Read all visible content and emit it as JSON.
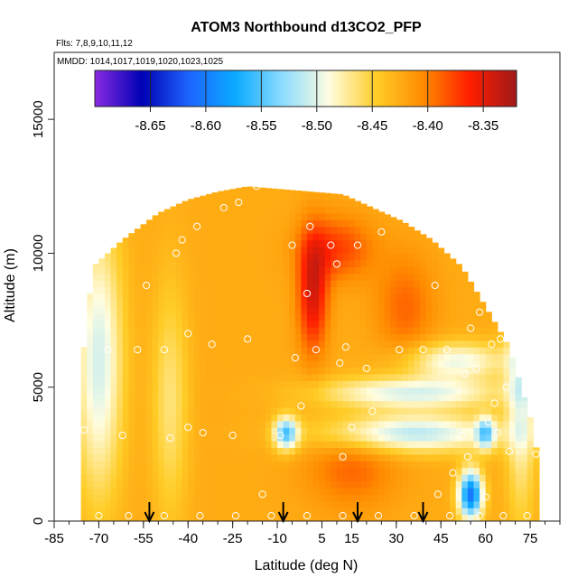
{
  "chart_data": {
    "type": "heatmap",
    "title": "ATOM3 Northbound d13CO2_PFP",
    "subtitle_flights": "Flts: 7,8,9,10,11,12",
    "subtitle_mmdd": "MMDD: 1014,1017,1019,1020,1023,1025",
    "xlabel": "Latitude (deg N)",
    "ylabel": "Altitude (m)",
    "xlim": [
      -85,
      85
    ],
    "ylim": [
      0,
      17500
    ],
    "xticks": [
      -85,
      -70,
      -55,
      -40,
      -25,
      -10,
      5,
      15,
      30,
      45,
      60,
      75
    ],
    "xminor_step": 5,
    "yticks": [
      0,
      5000,
      10000,
      15000
    ],
    "colorbar": {
      "min": -8.7,
      "max": -8.32,
      "ticks": [
        -8.65,
        -8.6,
        -8.55,
        -8.5,
        -8.45,
        -8.4,
        -8.35
      ],
      "tick_labels": [
        "-8.65",
        "-8.60",
        "-8.55",
        "-8.50",
        "-8.45",
        "-8.40",
        "-8.35"
      ],
      "colors": [
        "#8a2be2",
        "#0000b4",
        "#1e64ff",
        "#0aaaff",
        "#8cdcff",
        "#fffde0",
        "#ffcd28",
        "#ff8c00",
        "#ff1e00",
        "#a01919"
      ]
    },
    "field": {
      "lat_min": -76,
      "lat_max": 78,
      "lat_step": 2,
      "alt_step": 250,
      "ceiling": [
        {
          "lat": -76,
          "alt": 5500
        },
        {
          "lat": -72,
          "alt": 9500
        },
        {
          "lat": -62,
          "alt": 10500
        },
        {
          "lat": -50,
          "alt": 11500
        },
        {
          "lat": -40,
          "alt": 12000
        },
        {
          "lat": -30,
          "alt": 12300
        },
        {
          "lat": -20,
          "alt": 12500
        },
        {
          "lat": 12,
          "alt": 12200
        },
        {
          "lat": 22,
          "alt": 11700
        },
        {
          "lat": 32,
          "alt": 11200
        },
        {
          "lat": 42,
          "alt": 10500
        },
        {
          "lat": 52,
          "alt": 9500
        },
        {
          "lat": 60,
          "alt": 8000
        },
        {
          "lat": 68,
          "alt": 6500
        },
        {
          "lat": 76,
          "alt": 3500
        },
        {
          "lat": 78,
          "alt": 2000
        }
      ],
      "base": -8.425,
      "features": [
        {
          "lat": 2,
          "alt": 8500,
          "sx": 5,
          "sy": 2200,
          "amp": 0.08
        },
        {
          "lat": 10,
          "alt": 10200,
          "sx": 12,
          "sy": 1200,
          "amp": 0.05
        },
        {
          "lat": 33,
          "alt": 8000,
          "sx": 10,
          "sy": 2000,
          "amp": 0.035
        },
        {
          "lat": 50,
          "alt": 6000,
          "sx": 18,
          "sy": 700,
          "amp": -0.07
        },
        {
          "lat": 35,
          "alt": 4800,
          "sx": 30,
          "sy": 600,
          "amp": -0.08
        },
        {
          "lat": 35,
          "alt": 3300,
          "sx": 30,
          "sy": 700,
          "amp": -0.09
        },
        {
          "lat": -7,
          "alt": 3300,
          "sx": 4,
          "sy": 600,
          "amp": -0.12
        },
        {
          "lat": 60,
          "alt": 3300,
          "sx": 3,
          "sy": 600,
          "amp": -0.09
        },
        {
          "lat": 55,
          "alt": 1000,
          "sx": 4,
          "sy": 900,
          "amp": -0.18
        },
        {
          "lat": -70,
          "alt": 6000,
          "sx": 8,
          "sy": 5000,
          "amp": -0.08
        },
        {
          "lat": -46,
          "alt": 4500,
          "sx": 6,
          "sy": 4500,
          "amp": -0.04
        },
        {
          "lat": 15,
          "alt": 2000,
          "sx": 15,
          "sy": 1500,
          "amp": 0.035
        },
        {
          "lat": 72,
          "alt": 5500,
          "sx": 5,
          "sy": 5000,
          "amp": -0.07
        }
      ]
    },
    "observations": [
      {
        "lat": -75,
        "alt": 3400
      },
      {
        "lat": -73,
        "alt": 9700
      },
      {
        "lat": -67,
        "alt": 6400
      },
      {
        "lat": -62,
        "alt": 3200
      },
      {
        "lat": -57,
        "alt": 6400
      },
      {
        "lat": -54,
        "alt": 8800
      },
      {
        "lat": -48,
        "alt": 6400
      },
      {
        "lat": -46,
        "alt": 3100
      },
      {
        "lat": -44,
        "alt": 10000
      },
      {
        "lat": -42,
        "alt": 10500
      },
      {
        "lat": -40,
        "alt": 7000
      },
      {
        "lat": -40,
        "alt": 3500
      },
      {
        "lat": -37,
        "alt": 11000
      },
      {
        "lat": -35,
        "alt": 3300
      },
      {
        "lat": -32,
        "alt": 6600
      },
      {
        "lat": -28,
        "alt": 11700
      },
      {
        "lat": -25,
        "alt": 3200
      },
      {
        "lat": -23,
        "alt": 11900
      },
      {
        "lat": -20,
        "alt": 6800
      },
      {
        "lat": -17,
        "alt": 12500
      },
      {
        "lat": -15,
        "alt": 1000
      },
      {
        "lat": -9,
        "alt": 3200
      },
      {
        "lat": -5,
        "alt": 10300
      },
      {
        "lat": -4,
        "alt": 6100
      },
      {
        "lat": -2,
        "alt": 4300
      },
      {
        "lat": 0,
        "alt": 8500
      },
      {
        "lat": 1,
        "alt": 11000
      },
      {
        "lat": 3,
        "alt": 6400
      },
      {
        "lat": 8,
        "alt": 10300
      },
      {
        "lat": 10,
        "alt": 9600
      },
      {
        "lat": 11,
        "alt": 5900
      },
      {
        "lat": 12,
        "alt": 2400
      },
      {
        "lat": 13,
        "alt": 6500
      },
      {
        "lat": 15,
        "alt": 3500
      },
      {
        "lat": 17,
        "alt": 10300
      },
      {
        "lat": 20,
        "alt": 5700
      },
      {
        "lat": 22,
        "alt": 4100
      },
      {
        "lat": 25,
        "alt": 10800
      },
      {
        "lat": 31,
        "alt": 6400
      },
      {
        "lat": 33,
        "alt": 11500
      },
      {
        "lat": 39,
        "alt": 6400
      },
      {
        "lat": 43,
        "alt": 8800
      },
      {
        "lat": 44,
        "alt": 1000
      },
      {
        "lat": 47,
        "alt": 6400
      },
      {
        "lat": 49,
        "alt": 1800
      },
      {
        "lat": 52,
        "alt": 3200
      },
      {
        "lat": 53,
        "alt": 5500
      },
      {
        "lat": 54,
        "alt": 2400
      },
      {
        "lat": 55,
        "alt": 7200
      },
      {
        "lat": 57,
        "alt": 5700
      },
      {
        "lat": 58,
        "alt": 7800
      },
      {
        "lat": 60,
        "alt": 900
      },
      {
        "lat": 61,
        "alt": 3700
      },
      {
        "lat": 62,
        "alt": 6600
      },
      {
        "lat": 63,
        "alt": 4400
      },
      {
        "lat": 64,
        "alt": 3300
      },
      {
        "lat": 65,
        "alt": 6800
      },
      {
        "lat": 67,
        "alt": 5000
      },
      {
        "lat": 68,
        "alt": 2600
      },
      {
        "lat": 70,
        "alt": 7300
      },
      {
        "lat": 72,
        "alt": 6700
      },
      {
        "lat": 75,
        "alt": 4700
      },
      {
        "lat": 77,
        "alt": 2500
      },
      {
        "lat": -70,
        "alt": 200
      },
      {
        "lat": -60,
        "alt": 200
      },
      {
        "lat": -48,
        "alt": 200
      },
      {
        "lat": -36,
        "alt": 200
      },
      {
        "lat": -24,
        "alt": 200
      },
      {
        "lat": -12,
        "alt": 200
      },
      {
        "lat": 0,
        "alt": 200
      },
      {
        "lat": 12,
        "alt": 200
      },
      {
        "lat": 24,
        "alt": 200
      },
      {
        "lat": 36,
        "alt": 200
      },
      {
        "lat": 48,
        "alt": 200
      },
      {
        "lat": 58,
        "alt": 200
      },
      {
        "lat": 66,
        "alt": 200
      },
      {
        "lat": 74,
        "alt": 200
      }
    ],
    "arrows_lat": [
      -53,
      -8,
      17,
      39
    ]
  }
}
